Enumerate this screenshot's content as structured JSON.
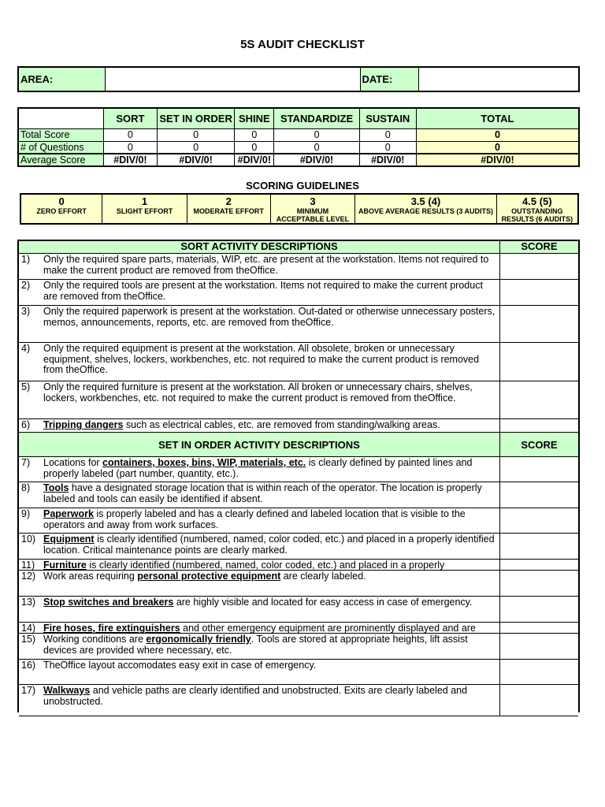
{
  "title": "5S AUDIT CHECKLIST",
  "area_label": "AREA:",
  "date_label": "DATE:",
  "area_value": "",
  "date_value": "",
  "summary": {
    "columns": [
      "SORT",
      "SET IN ORDER",
      "SHINE",
      "STANDARDIZE",
      "SUSTAIN",
      "TOTAL"
    ],
    "rows": [
      {
        "label": "Total Score",
        "values": [
          "0",
          "0",
          "0",
          "0",
          "0",
          "0"
        ]
      },
      {
        "label": "# of Questions",
        "values": [
          "0",
          "0",
          "0",
          "0",
          "0",
          "0"
        ]
      },
      {
        "label": "Average Score",
        "values": [
          "#DIV/0!",
          "#DIV/0!",
          "#DIV/0!",
          "#DIV/0!",
          "#DIV/0!",
          "#DIV/0!"
        ]
      }
    ]
  },
  "scoring": {
    "title": "SCORING GUIDELINES",
    "levels": [
      {
        "score": "0",
        "desc": "ZERO EFFORT"
      },
      {
        "score": "1",
        "desc": "SLIGHT EFFORT"
      },
      {
        "score": "2",
        "desc": "MODERATE EFFORT"
      },
      {
        "score": "3",
        "desc": "MINIMUM ACCEPTABLE LEVEL"
      },
      {
        "score": "3.5 (4)",
        "desc": "ABOVE AVERAGE RESULTS (3 AUDITS)"
      },
      {
        "score": "4.5  (5)",
        "desc": "OUTSTANDING RESULTS (6 AUDITS)"
      }
    ]
  },
  "score_label": "SCORE",
  "sections": [
    {
      "title": "SORT ACTIVITY DESCRIPTIONS",
      "items": [
        {
          "num": "1)",
          "pre": "Only the required spare parts, materials, WIP, etc. are present at the workstation. Items not required to make the current product are removed from theOffice.",
          "em": "",
          "post": ""
        },
        {
          "num": "2)",
          "pre": "Only the required tools are present at the workstation. Items not required to make the current product are removed from theOffice.",
          "em": "",
          "post": ""
        },
        {
          "num": "3)",
          "pre": "Only the required paperwork is present at the workstation. Out-dated or otherwise unnecessary posters, memos, announcements, reports, etc. are removed from theOffice.",
          "em": "",
          "post": ""
        },
        {
          "num": "4)",
          "pre": "Only the required equipment is present at the workstation. All obsolete, broken or unnecessary equipment, shelves, lockers, workbenches, etc. not required to make the current product is removed from theOffice.",
          "em": "",
          "post": ""
        },
        {
          "num": "5)",
          "pre": "Only the required furniture is present at the workstation. All broken or unnecessary chairs, shelves, lockers, workbenches, etc. not required to make the current product is removed from theOffice.",
          "em": "",
          "post": ""
        },
        {
          "num": "6)",
          "pre": "",
          "em": "Tripping dangers",
          "post": " such as electrical cables, etc. are removed from standing/walking areas."
        }
      ]
    },
    {
      "title": "SET IN ORDER ACTIVITY DESCRIPTIONS",
      "items": [
        {
          "num": "7)",
          "pre": "Locations for ",
          "em": "containers, boxes, bins, WIP, materials, etc.",
          "post": " is clearly defined by painted lines and properly labeled (part number, quantity, etc.)."
        },
        {
          "num": "8)",
          "pre": "",
          "em": "Tools",
          "post": " have a designated storage location that is within reach of the operator. The location is properly labeled and tools can easily be identified if absent."
        },
        {
          "num": "9)",
          "pre": "",
          "em": "Paperwork",
          "post": " is properly labeled and has a clearly defined and labeled location that is visible to the operators and away from work surfaces."
        },
        {
          "num": "10)",
          "pre": "",
          "em": "Equipment",
          "post": " is clearly identified (numbered, named, color coded, etc.) and placed in a properly identified location. Critical maintenance points are clearly marked."
        },
        {
          "num": "11)",
          "pre": "",
          "em": "Furniture",
          "post": " is clearly identified (numbered, named, color coded, etc.) and placed in a properly"
        },
        {
          "num": "12)",
          "pre": "Work areas requiring ",
          "em": "personal protective equipment",
          "post": " are clearly labeled."
        },
        {
          "num": "13)",
          "pre": "",
          "em": "Stop switches and breakers",
          "post": " are highly visible and located for easy access in case of emergency."
        },
        {
          "num": "14)",
          "pre": "",
          "em": "Fire hoses, fire extinguishers",
          "post": " and other emergency equipment are prominently displayed and are"
        },
        {
          "num": "15)",
          "pre": "Working conditions are ",
          "em": "ergonomically friendly",
          "post": ". Tools are stored at appropriate heights, lift assist devices are provided where necessary, etc."
        },
        {
          "num": "16)",
          "pre": "TheOffice layout accomodates easy exit in case of emergency.",
          "em": "",
          "post": ""
        },
        {
          "num": "17)",
          "pre": "",
          "em": "Walkways",
          "post": " and vehicle paths are clearly identified and unobstructed. Exits are clearly labeled and unobstructed."
        }
      ]
    }
  ],
  "colors": {
    "green": "#ccffcc",
    "yellow": "#ffffcc"
  }
}
